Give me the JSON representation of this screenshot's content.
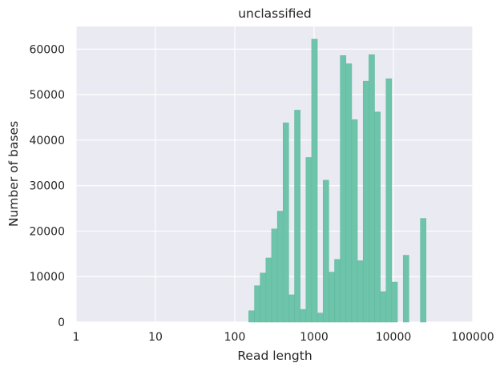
{
  "chart_data": {
    "type": "bar",
    "title": "unclassified",
    "xlabel": "Read length",
    "ylabel": "Number of bases",
    "x_scale": "log",
    "xlim": [
      1,
      100000
    ],
    "ylim": [
      0,
      65000
    ],
    "x_ticks": [
      1,
      10,
      100,
      1000,
      10000,
      100000
    ],
    "x_tick_labels": [
      "1",
      "10",
      "100",
      "1000",
      "10000",
      "100000"
    ],
    "y_ticks": [
      0,
      10000,
      20000,
      30000,
      40000,
      50000,
      60000
    ],
    "y_tick_labels": [
      "0",
      "10000",
      "20000",
      "30000",
      "40000",
      "50000",
      "60000"
    ],
    "grid": true,
    "color": "#66c2a5",
    "background": "#eaeaf2",
    "bins": [
      {
        "x0": 150,
        "x1": 177,
        "value": 2500
      },
      {
        "x0": 177,
        "x1": 209,
        "value": 8000
      },
      {
        "x0": 209,
        "x1": 247,
        "value": 10800
      },
      {
        "x0": 247,
        "x1": 291,
        "value": 14100
      },
      {
        "x0": 291,
        "x1": 344,
        "value": 20500
      },
      {
        "x0": 344,
        "x1": 406,
        "value": 24400
      },
      {
        "x0": 406,
        "x1": 479,
        "value": 43800
      },
      {
        "x0": 479,
        "x1": 566,
        "value": 6000
      },
      {
        "x0": 566,
        "x1": 668,
        "value": 46600
      },
      {
        "x0": 668,
        "x1": 789,
        "value": 2800
      },
      {
        "x0": 789,
        "x1": 931,
        "value": 36200
      },
      {
        "x0": 931,
        "x1": 1100,
        "value": 62200
      },
      {
        "x0": 1100,
        "x1": 1298,
        "value": 2000
      },
      {
        "x0": 1298,
        "x1": 1533,
        "value": 31200
      },
      {
        "x0": 1533,
        "x1": 1810,
        "value": 11000
      },
      {
        "x0": 1810,
        "x1": 2137,
        "value": 13800
      },
      {
        "x0": 2137,
        "x1": 2523,
        "value": 58600
      },
      {
        "x0": 2523,
        "x1": 2979,
        "value": 56800
      },
      {
        "x0": 2979,
        "x1": 3517,
        "value": 44500
      },
      {
        "x0": 3517,
        "x1": 4152,
        "value": 13500
      },
      {
        "x0": 4152,
        "x1": 4903,
        "value": 53000
      },
      {
        "x0": 4903,
        "x1": 5788,
        "value": 58800
      },
      {
        "x0": 5788,
        "x1": 6834,
        "value": 46200
      },
      {
        "x0": 6834,
        "x1": 8069,
        "value": 6700
      },
      {
        "x0": 8069,
        "x1": 9527,
        "value": 53500
      },
      {
        "x0": 9527,
        "x1": 11247,
        "value": 8800
      },
      {
        "x0": 11247,
        "x1": 13280,
        "value": 0
      },
      {
        "x0": 13280,
        "x1": 15679,
        "value": 14700
      },
      {
        "x0": 15679,
        "x1": 18512,
        "value": 0
      },
      {
        "x0": 18512,
        "x1": 21856,
        "value": 0
      },
      {
        "x0": 21856,
        "x1": 25804,
        "value": 22800
      }
    ]
  }
}
